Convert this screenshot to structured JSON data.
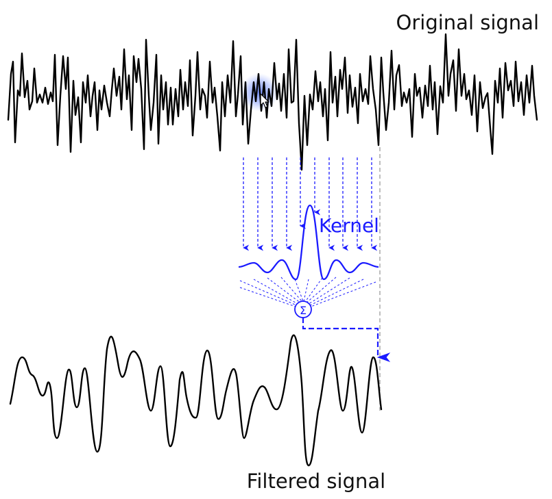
{
  "diagram": {
    "original_label": "Original signal",
    "kernel_label": "Kernel",
    "sum_symbol": "Σ",
    "filtered_label": "Filtered signal"
  },
  "colors": {
    "signal": "#000000",
    "kernel": "#1a1aff",
    "guide": "#9a9a9a",
    "cursor_highlight": "#6f8fff"
  },
  "icons": {
    "cursor": "mouse-pointer-icon"
  }
}
